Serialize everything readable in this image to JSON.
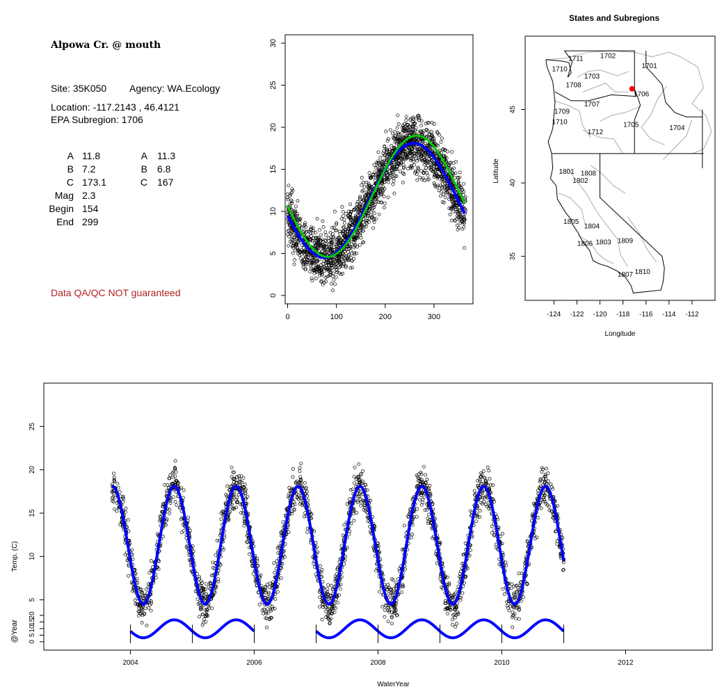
{
  "info": {
    "title": "Alpowa Cr. @ mouth",
    "site": "Site: 35K050",
    "agency": "Agency: WA.Ecology",
    "location": "Location: -117.2143 , 46.4121",
    "subregion": "EPA Subregion: 1706",
    "coef_left": [
      {
        "label": "A",
        "value": "11.8"
      },
      {
        "label": "B",
        "value": "7.2"
      },
      {
        "label": "C",
        "value": "173.1"
      },
      {
        "label": "Mag",
        "value": "2.3"
      },
      {
        "label": "Begin",
        "value": "154"
      },
      {
        "label": "End",
        "value": "299"
      }
    ],
    "coef_right": [
      {
        "label": "A",
        "value": "11.3"
      },
      {
        "label": "B",
        "value": "6.8"
      },
      {
        "label": "C",
        "value": "167"
      }
    ],
    "qa_note": "Data QA/QC NOT guaranteed"
  },
  "chart_data": [
    {
      "type": "scatter",
      "title": "",
      "xlabel": "",
      "ylabel": "",
      "xlim": [
        -5,
        380
      ],
      "ylim": [
        -1,
        31
      ],
      "xticks": [
        "0",
        "100",
        "200",
        "300"
      ],
      "yticks": [
        "0",
        "5",
        "10",
        "15",
        "20",
        "25",
        "30"
      ],
      "x_tick_values": [
        0,
        100,
        200,
        300
      ],
      "y_tick_values": [
        0,
        5,
        10,
        15,
        20,
        25,
        30
      ],
      "series": [
        {
          "kind": "fit",
          "color": "#0000ff",
          "A": 11.3,
          "B": 6.8,
          "C": 167
        },
        {
          "kind": "fit",
          "color": "#00cc00",
          "A": 11.8,
          "B": 7.2,
          "C": 173.1
        }
      ]
    },
    {
      "type": "map",
      "title": "States and Subregions",
      "xlabel": "Longitude",
      "ylabel": "Latitude",
      "xlim": [
        -126.5,
        -110
      ],
      "ylim": [
        32,
        50
      ],
      "xticks": [
        "-124",
        "-122",
        "-120",
        "-118",
        "-116",
        "-114",
        "-112"
      ],
      "yticks": [
        "35",
        "40",
        "45"
      ],
      "x_tick_values": [
        -124,
        -122,
        -120,
        -118,
        -116,
        -114,
        -112
      ],
      "y_tick_values": [
        35,
        40,
        45
      ],
      "subregions": [
        {
          "label": "1711",
          "lon": -122.1,
          "lat": 48.5
        },
        {
          "label": "1710",
          "lon": -123.5,
          "lat": 47.8
        },
        {
          "label": "1702",
          "lon": -119.3,
          "lat": 48.7
        },
        {
          "label": "1701",
          "lon": -115.7,
          "lat": 48.0
        },
        {
          "label": "1703",
          "lon": -120.7,
          "lat": 47.3
        },
        {
          "label": "1708",
          "lon": -122.3,
          "lat": 46.7
        },
        {
          "label": "1706",
          "lon": -116.4,
          "lat": 46.1
        },
        {
          "label": "1707",
          "lon": -120.7,
          "lat": 45.4
        },
        {
          "label": "1709",
          "lon": -123.3,
          "lat": 44.9
        },
        {
          "label": "1710",
          "lon": -123.5,
          "lat": 44.2
        },
        {
          "label": "1705",
          "lon": -117.3,
          "lat": 44.0
        },
        {
          "label": "1704",
          "lon": -113.3,
          "lat": 43.8
        },
        {
          "label": "1712",
          "lon": -120.4,
          "lat": 43.5
        },
        {
          "label": "1801",
          "lon": -122.9,
          "lat": 40.8
        },
        {
          "label": "1808",
          "lon": -121.0,
          "lat": 40.7
        },
        {
          "label": "1802",
          "lon": -121.7,
          "lat": 40.2
        },
        {
          "label": "1805",
          "lon": -122.5,
          "lat": 37.4
        },
        {
          "label": "1804",
          "lon": -120.7,
          "lat": 37.1
        },
        {
          "label": "1806",
          "lon": -121.3,
          "lat": 35.9
        },
        {
          "label": "1803",
          "lon": -119.7,
          "lat": 36.0
        },
        {
          "label": "1809",
          "lon": -117.8,
          "lat": 36.1
        },
        {
          "label": "1807",
          "lon": -117.8,
          "lat": 33.8
        },
        {
          "label": "1810",
          "lon": -116.3,
          "lat": 34.0
        }
      ],
      "site": {
        "lon": -117.2143,
        "lat": 46.4121,
        "color": "#ff0000"
      }
    },
    {
      "type": "scatter",
      "title": "",
      "xlabel": "WaterYear",
      "ylabel": "Temp. (C)",
      "xlim": [
        2002.6,
        2013.4
      ],
      "ylim": [
        -0.8,
        30
      ],
      "xticks": [
        "2004",
        "2006",
        "2008",
        "2010",
        "2012"
      ],
      "x_tick_values": [
        2004,
        2006,
        2008,
        2010,
        2012
      ],
      "yticks": [
        "5",
        "10",
        "15",
        "20",
        "25"
      ],
      "y_tick_values": [
        5,
        10,
        15,
        20,
        25
      ],
      "data_range": [
        2003.7,
        2011.0
      ],
      "series": [
        {
          "kind": "fit",
          "color": "#0000ff",
          "A": 11.3,
          "B": 6.8,
          "C": 167
        }
      ],
      "subplot": {
        "ylabel": "@Year",
        "yticks": [
          "0",
          "5",
          "10",
          "15",
          "20"
        ],
        "y_tick_values": [
          0,
          5,
          10,
          15,
          20
        ],
        "year_markers": [
          2004,
          2005,
          2006,
          2007,
          2008,
          2009,
          2010,
          2011
        ],
        "segments": [
          [
            2004.0,
            2006.0
          ],
          [
            2007.0,
            2011.0
          ]
        ]
      }
    }
  ]
}
